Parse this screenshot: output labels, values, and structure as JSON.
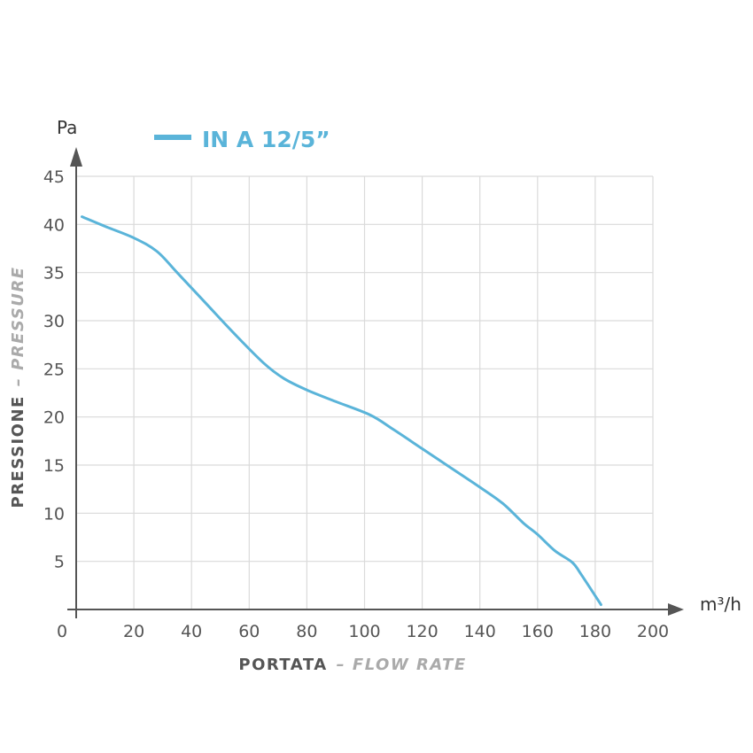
{
  "chart_data": {
    "type": "line",
    "series": [
      {
        "name": "IN A 12/5”",
        "color": "#5ab4d9",
        "points": [
          [
            2,
            40.8
          ],
          [
            10,
            39.8
          ],
          [
            20,
            38.6
          ],
          [
            28,
            37.2
          ],
          [
            35,
            35.0
          ],
          [
            45,
            31.8
          ],
          [
            55,
            28.6
          ],
          [
            65,
            25.6
          ],
          [
            72,
            24.0
          ],
          [
            80,
            22.8
          ],
          [
            90,
            21.6
          ],
          [
            102,
            20.2
          ],
          [
            110,
            18.7
          ],
          [
            120,
            16.7
          ],
          [
            130,
            14.7
          ],
          [
            140,
            12.7
          ],
          [
            148,
            11.0
          ],
          [
            155,
            9.0
          ],
          [
            160,
            7.8
          ],
          [
            166,
            6.1
          ],
          [
            172,
            4.9
          ],
          [
            175,
            3.7
          ],
          [
            182,
            0.5
          ]
        ]
      }
    ],
    "x_ticks": [
      "0",
      "20",
      "40",
      "60",
      "80",
      "100",
      "120",
      "140",
      "160",
      "180",
      "200"
    ],
    "y_ticks": [
      "5",
      "10",
      "15",
      "20",
      "25",
      "30",
      "35",
      "40",
      "45"
    ],
    "xlim": [
      0,
      200
    ],
    "ylim": [
      0,
      45
    ],
    "x_unit_label": "m³/h",
    "y_unit_label": "Pa",
    "xlabel": {
      "main": "PORTATA",
      "sub": "– FLOW RATE"
    },
    "ylabel": {
      "main": "PRESSIONE",
      "sub": "– PRESSURE"
    },
    "grid": true,
    "legend_position": "top-left"
  }
}
